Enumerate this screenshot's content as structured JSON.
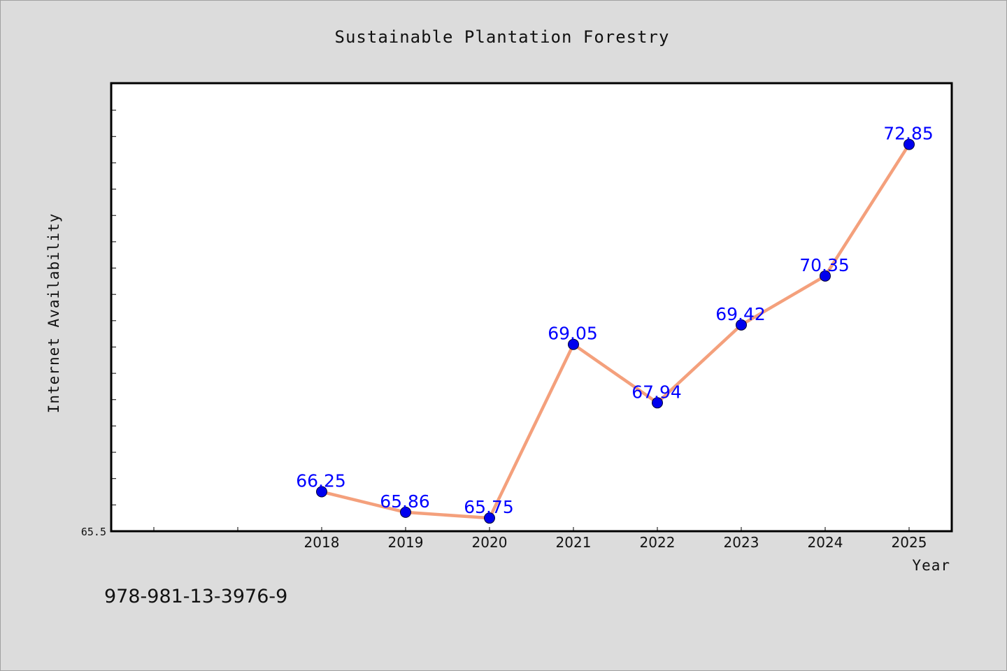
{
  "chart_data": {
    "type": "line",
    "title": "Sustainable Plantation Forestry",
    "xlabel": "Year",
    "ylabel": "Internet Availability",
    "categories": [
      "2018",
      "2019",
      "2020",
      "2021",
      "2022",
      "2023",
      "2024",
      "2025"
    ],
    "x_slots_before_data": 2,
    "series": [
      {
        "values": [
          66.25,
          65.86,
          65.75,
          69.05,
          67.94,
          69.42,
          70.35,
          72.85
        ],
        "line_color": "#f4a07c",
        "marker_color": "#0000ee",
        "label_color": "#0000ff"
      }
    ],
    "value_labels": [
      "66.25",
      "65.86",
      "65.75",
      "69.05",
      "67.94",
      "69.42",
      "70.35",
      "72.85"
    ],
    "ylim": [
      65.5,
      74.0
    ],
    "y_minor_tick_step": 0.5,
    "y_tick_labels": [
      {
        "value": 65.5,
        "label": "65.5"
      }
    ],
    "grid": false,
    "legend": "none"
  },
  "footer": {
    "isbn": "978-981-13-3976-9"
  },
  "colors": {
    "background": "#dcdcdc",
    "plot_background": "#ffffff",
    "axis": "#000000"
  }
}
